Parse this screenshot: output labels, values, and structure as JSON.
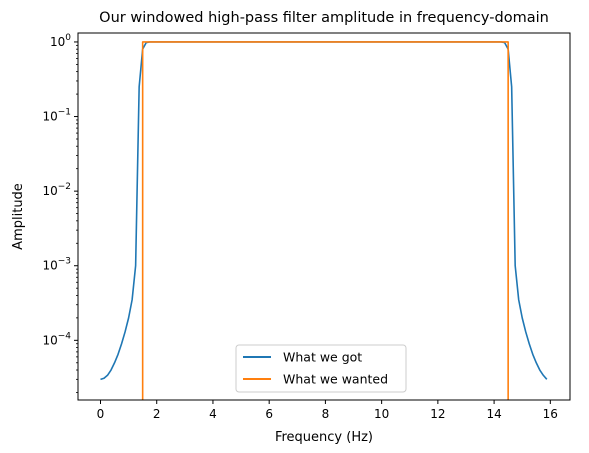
{
  "chart_data": {
    "type": "line",
    "title": "Our windowed high-pass filter amplitude in frequency-domain",
    "xlabel": "Frequency (Hz)",
    "ylabel": "Amplitude",
    "xscale": "linear",
    "yscale": "log",
    "xlim": [
      -0.8,
      16.7
    ],
    "ylim_log10": [
      -4.8,
      0.12
    ],
    "x_ticks": [
      0,
      2,
      4,
      6,
      8,
      10,
      12,
      14,
      16
    ],
    "x_tick_labels": [
      "0",
      "2",
      "4",
      "6",
      "8",
      "10",
      "12",
      "14",
      "16"
    ],
    "y_tick_exponents": [
      0,
      -1,
      -2,
      -3,
      -4
    ],
    "y_tick_base": "10",
    "grid": false,
    "legend_position": "lower center",
    "series": [
      {
        "name": "What we got",
        "color": "#1f77b4",
        "x": [
          0.0,
          0.125,
          0.25,
          0.375,
          0.5,
          0.625,
          0.75,
          0.875,
          1.0,
          1.125,
          1.25,
          1.375,
          1.5,
          1.625,
          1.75,
          14.25,
          14.375,
          14.5,
          14.625,
          14.75,
          14.875,
          15.0,
          15.125,
          15.25,
          15.375,
          15.5,
          15.625,
          15.75,
          15.875
        ],
        "y": [
          3e-05,
          3.1e-05,
          3.4e-05,
          4e-05,
          5e-05,
          6.5e-05,
          9e-05,
          0.00013,
          0.0002,
          0.00035,
          0.001,
          0.25,
          0.8,
          0.98,
          1.0,
          1.0,
          0.98,
          0.8,
          0.25,
          0.001,
          0.00035,
          0.0002,
          0.00013,
          9e-05,
          6.5e-05,
          5e-05,
          4e-05,
          3.4e-05,
          3e-05
        ]
      },
      {
        "name": "What we wanted",
        "color": "#ff7f0e",
        "x": [
          1.5,
          1.5,
          14.5,
          14.5
        ],
        "y": [
          0,
          1.0,
          1.0,
          0
        ]
      }
    ]
  }
}
